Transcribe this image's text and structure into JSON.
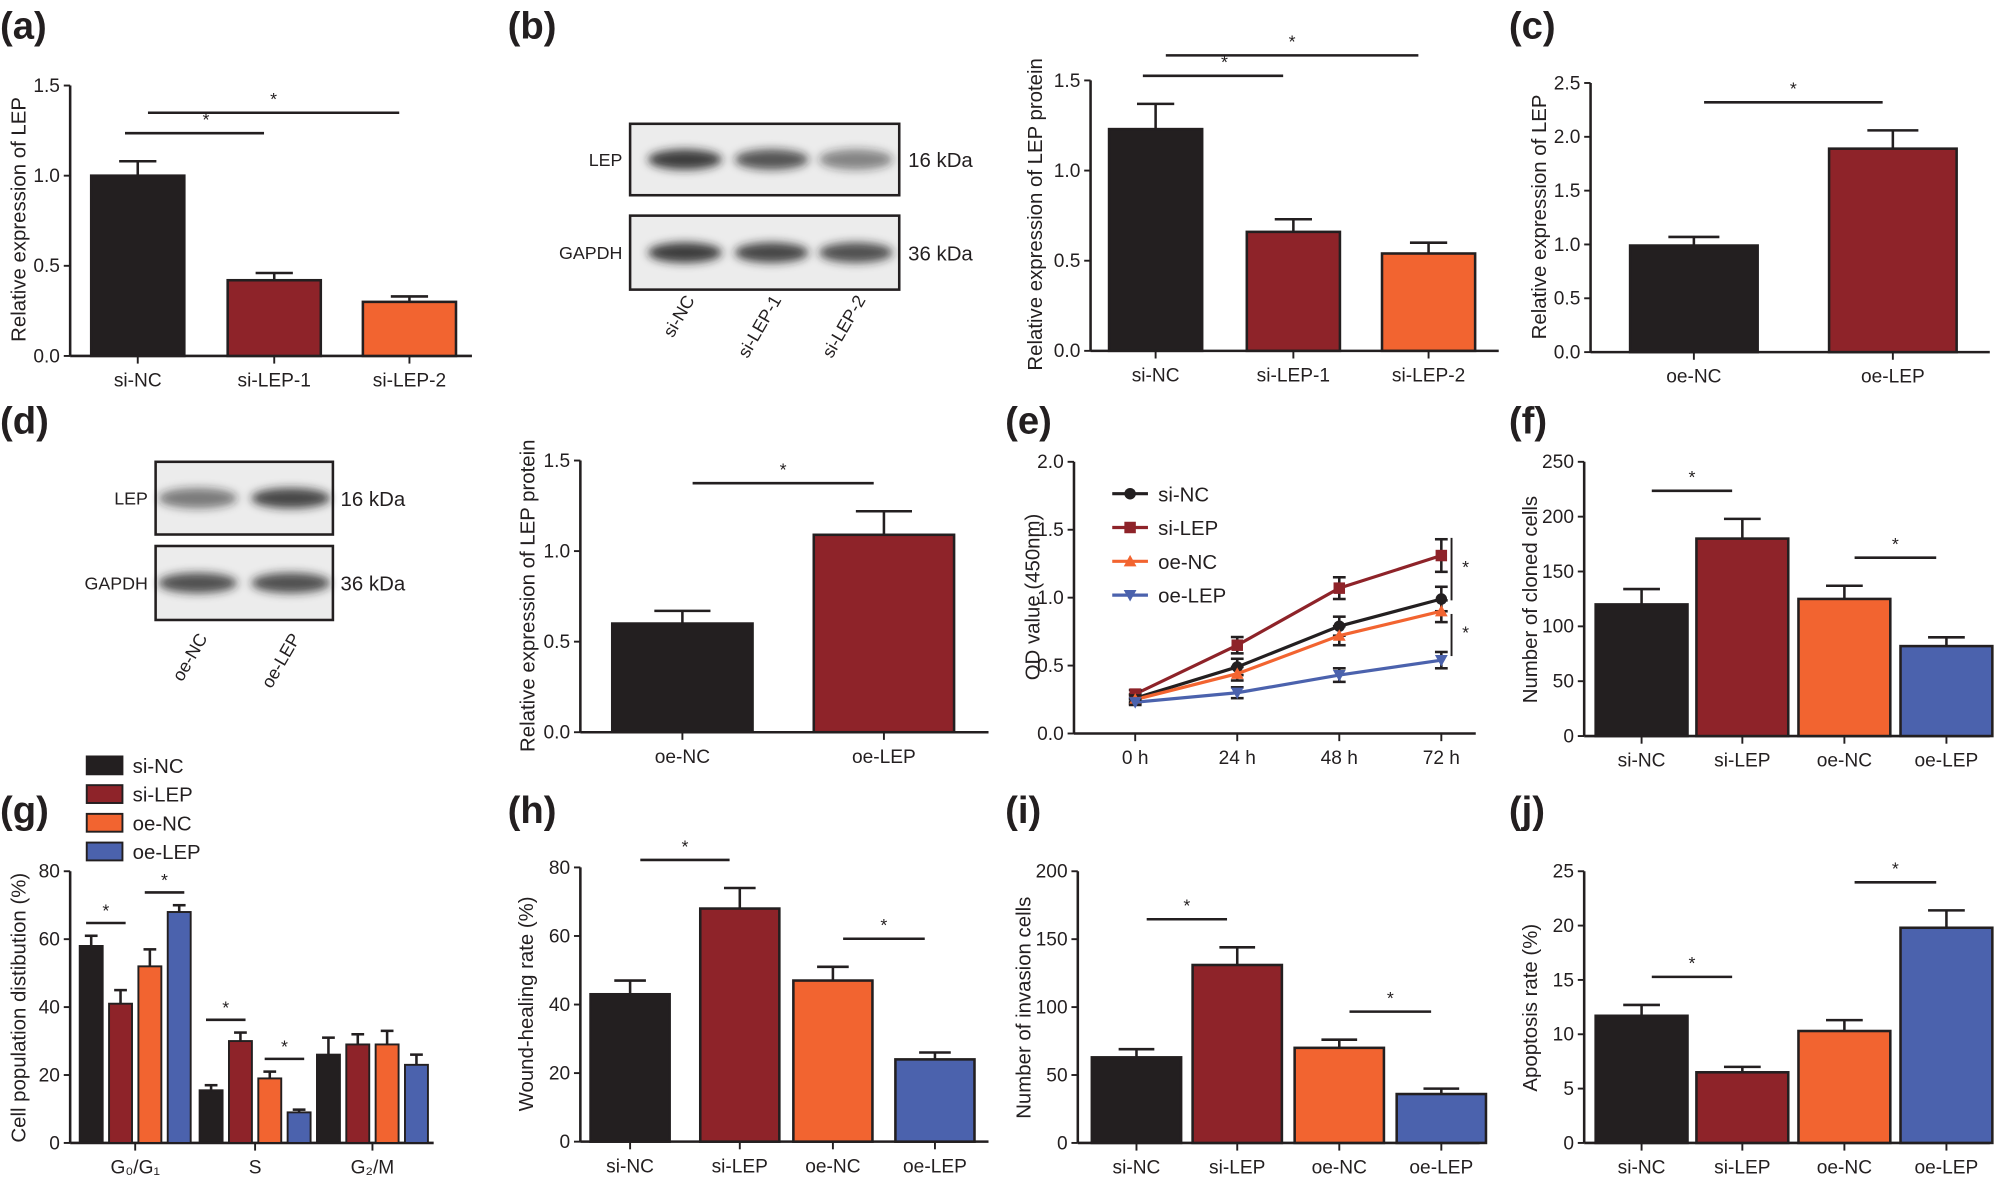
{
  "colors": {
    "si-NC": "#231f20",
    "si-LEP": "#8e2329",
    "si-LEP-1": "#8e2329",
    "si-LEP-2": "#f26430",
    "oe-NC": "#f26430",
    "oe-LEP": "#4b62ad",
    "oe-NC-black": "#231f20",
    "oe-LEP-red": "#8e2329"
  },
  "blots": [
    {
      "panel": "(b)",
      "rows": [
        {
          "protein": "LEP",
          "size": "16 kDa"
        },
        {
          "protein": "GAPDH",
          "size": "36 kDa"
        }
      ],
      "lanes": [
        "si-NC",
        "si-LEP-1",
        "si-LEP-2"
      ]
    },
    {
      "panel": "(d)",
      "rows": [
        {
          "protein": "LEP",
          "size": "16 kDa"
        },
        {
          "protein": "GAPDH",
          "size": "36 kDa"
        }
      ],
      "lanes": [
        "oe-NC",
        "oe-LEP"
      ]
    }
  ],
  "chart_data": [
    {
      "panel": "(a)",
      "type": "bar",
      "categories": [
        "si-NC",
        "si-LEP-1",
        "si-LEP-2"
      ],
      "values": [
        1.0,
        0.42,
        0.3
      ],
      "errors": [
        0.08,
        0.04,
        0.03
      ],
      "ylabel": "Relative expression of LEP",
      "ylim": [
        0,
        1.5
      ],
      "yticks": [
        "0.0",
        "0.5",
        "1.0",
        "1.5"
      ],
      "significance": [
        {
          "pair": [
            0,
            1
          ],
          "label": "*"
        },
        {
          "pair": [
            0,
            2
          ],
          "label": "*"
        }
      ],
      "bar_colors": [
        "#231f20",
        "#8e2329",
        "#f26430"
      ]
    },
    {
      "panel": "",
      "type": "bar",
      "categories": [
        "si-NC",
        "si-LEP-1",
        "si-LEP-2"
      ],
      "values": [
        1.23,
        0.66,
        0.54
      ],
      "errors": [
        0.14,
        0.07,
        0.06
      ],
      "ylabel": "Relative expression of LEP protein",
      "ylim": [
        0,
        1.5
      ],
      "yticks": [
        "0.0",
        "0.5",
        "1.0",
        "1.5"
      ],
      "significance": [
        {
          "pair": [
            0,
            1
          ],
          "label": "*"
        },
        {
          "pair": [
            0,
            2
          ],
          "label": "*"
        }
      ],
      "bar_colors": [
        "#231f20",
        "#8e2329",
        "#f26430"
      ]
    },
    {
      "panel": "(c)",
      "type": "bar",
      "categories": [
        "oe-NC",
        "oe-LEP"
      ],
      "values": [
        0.99,
        1.89
      ],
      "errors": [
        0.08,
        0.17
      ],
      "ylabel": "Relative expression of LEP",
      "ylim": [
        0,
        2.5
      ],
      "yticks": [
        "0.0",
        "0.5",
        "1.0",
        "1.5",
        "2.0",
        "2.5"
      ],
      "significance": [
        {
          "pair": [
            0,
            1
          ],
          "label": "*"
        }
      ],
      "bar_colors": [
        "#231f20",
        "#8e2329"
      ]
    },
    {
      "panel": "",
      "type": "bar",
      "categories": [
        "oe-NC",
        "oe-LEP"
      ],
      "values": [
        0.6,
        1.09
      ],
      "errors": [
        0.07,
        0.13
      ],
      "ylabel": "Relative expression of LEP protein",
      "ylim": [
        0,
        1.5
      ],
      "yticks": [
        "0.0",
        "0.5",
        "1.0",
        "1.5"
      ],
      "significance": [
        {
          "pair": [
            0,
            1
          ],
          "label": "*"
        }
      ],
      "bar_colors": [
        "#231f20",
        "#8e2329"
      ]
    },
    {
      "panel": "(e)",
      "type": "line",
      "categories": [
        "0 h",
        "24 h",
        "48 h",
        "72 h"
      ],
      "ylabel": "OD value (450nm)",
      "ylim": [
        0,
        2.0
      ],
      "yticks": [
        "0.0",
        "0.5",
        "1.0",
        "1.5",
        "2.0"
      ],
      "legend": "top-left",
      "series": [
        {
          "name": "si-NC",
          "values": [
            0.26,
            0.49,
            0.79,
            0.99
          ],
          "errors": [
            0.03,
            0.06,
            0.07,
            0.09
          ],
          "color": "#231f20",
          "marker": "circle"
        },
        {
          "name": "si-LEP",
          "values": [
            0.29,
            0.65,
            1.07,
            1.31
          ],
          "errors": [
            0.03,
            0.06,
            0.08,
            0.12
          ],
          "color": "#8e2329",
          "marker": "square"
        },
        {
          "name": "oe-NC",
          "values": [
            0.25,
            0.44,
            0.72,
            0.9
          ],
          "errors": [
            0.03,
            0.05,
            0.07,
            0.08
          ],
          "color": "#f26430",
          "marker": "triangle-up"
        },
        {
          "name": "oe-LEP",
          "values": [
            0.23,
            0.3,
            0.43,
            0.54
          ],
          "errors": [
            0.02,
            0.04,
            0.05,
            0.06
          ],
          "color": "#4b62ad",
          "marker": "triangle-down"
        }
      ],
      "significance": [
        {
          "between": [
            "si-LEP",
            "si-NC"
          ],
          "label": "*"
        },
        {
          "between": [
            "oe-NC",
            "oe-LEP"
          ],
          "label": "*"
        }
      ]
    },
    {
      "panel": "(f)",
      "type": "bar",
      "categories": [
        "si-NC",
        "si-LEP",
        "oe-NC",
        "oe-LEP"
      ],
      "values": [
        120,
        180,
        125,
        82
      ],
      "errors": [
        14,
        18,
        12,
        8
      ],
      "ylabel": "Number of cloned cells",
      "ylim": [
        0,
        250
      ],
      "yticks": [
        "0",
        "50",
        "100",
        "150",
        "200",
        "250"
      ],
      "significance": [
        {
          "pair": [
            0,
            1
          ],
          "label": "*"
        },
        {
          "pair": [
            2,
            3
          ],
          "label": "*"
        }
      ],
      "bar_colors": [
        "#231f20",
        "#8e2329",
        "#f26430",
        "#4b62ad"
      ]
    },
    {
      "panel": "(g)",
      "type": "bar",
      "grouped": true,
      "categories": [
        "G₀/G₁",
        "S",
        "G₂/M"
      ],
      "ylabel": "Cell population  distibution (%)",
      "ylim": [
        0,
        80
      ],
      "yticks": [
        "0",
        "20",
        "40",
        "60",
        "80"
      ],
      "legend": "top-left",
      "series": [
        {
          "name": "si-NC",
          "values": [
            58,
            15.5,
            26
          ],
          "errors": [
            3,
            1.5,
            5
          ],
          "color": "#231f20"
        },
        {
          "name": "si-LEP",
          "values": [
            41,
            30,
            29
          ],
          "errors": [
            4,
            2.5,
            3
          ],
          "color": "#8e2329"
        },
        {
          "name": "oe-NC",
          "values": [
            52,
            19,
            29
          ],
          "errors": [
            5,
            2,
            4
          ],
          "color": "#f26430"
        },
        {
          "name": "oe-LEP",
          "values": [
            68,
            9,
            23
          ],
          "errors": [
            2,
            0.8,
            3
          ],
          "color": "#4b62ad"
        }
      ],
      "significance": [
        {
          "group": 0,
          "pair": [
            0,
            1
          ],
          "label": "*"
        },
        {
          "group": 0,
          "pair": [
            2,
            3
          ],
          "label": "*"
        },
        {
          "group": 1,
          "pair": [
            0,
            1
          ],
          "label": "*"
        },
        {
          "group": 1,
          "pair": [
            2,
            3
          ],
          "label": "*"
        }
      ]
    },
    {
      "panel": "(h)",
      "type": "bar",
      "categories": [
        "si-NC",
        "si-LEP",
        "oe-NC",
        "oe-LEP"
      ],
      "values": [
        43,
        68,
        47,
        24
      ],
      "errors": [
        4,
        6,
        4,
        2
      ],
      "ylabel": "Wound-healing rate (%)",
      "ylim": [
        0,
        80
      ],
      "yticks": [
        "0",
        "20",
        "40",
        "60",
        "80"
      ],
      "significance": [
        {
          "pair": [
            0,
            1
          ],
          "label": "*"
        },
        {
          "pair": [
            2,
            3
          ],
          "label": "*"
        }
      ],
      "bar_colors": [
        "#231f20",
        "#8e2329",
        "#f26430",
        "#4b62ad"
      ]
    },
    {
      "panel": "(i)",
      "type": "bar",
      "categories": [
        "si-NC",
        "si-LEP",
        "oe-NC",
        "oe-LEP"
      ],
      "values": [
        63,
        131,
        70,
        36
      ],
      "errors": [
        6,
        13,
        6,
        4
      ],
      "ylabel": "Number of invasion cells",
      "ylim": [
        0,
        200
      ],
      "yticks": [
        "0",
        "50",
        "100",
        "150",
        "200"
      ],
      "significance": [
        {
          "pair": [
            0,
            1
          ],
          "label": "*"
        },
        {
          "pair": [
            2,
            3
          ],
          "label": "*"
        }
      ],
      "bar_colors": [
        "#231f20",
        "#8e2329",
        "#f26430",
        "#4b62ad"
      ]
    },
    {
      "panel": "(j)",
      "type": "bar",
      "categories": [
        "si-NC",
        "si-LEP",
        "oe-NC",
        "oe-LEP"
      ],
      "values": [
        11.7,
        6.5,
        10.3,
        19.8
      ],
      "errors": [
        1.0,
        0.5,
        1.0,
        1.6
      ],
      "ylabel": "Apoptosis rate (%)",
      "ylim": [
        0,
        25
      ],
      "yticks": [
        "0",
        "5",
        "10",
        "15",
        "20",
        "25"
      ],
      "significance": [
        {
          "pair": [
            0,
            1
          ],
          "label": "*"
        },
        {
          "pair": [
            2,
            3
          ],
          "label": "*"
        }
      ],
      "bar_colors": [
        "#231f20",
        "#8e2329",
        "#f26430",
        "#4b62ad"
      ]
    }
  ],
  "panel_letters": [
    "(a)",
    "(b)",
    "(c)",
    "(d)",
    "(e)",
    "(f)",
    "(g)",
    "(h)",
    "(i)",
    "(j)"
  ]
}
